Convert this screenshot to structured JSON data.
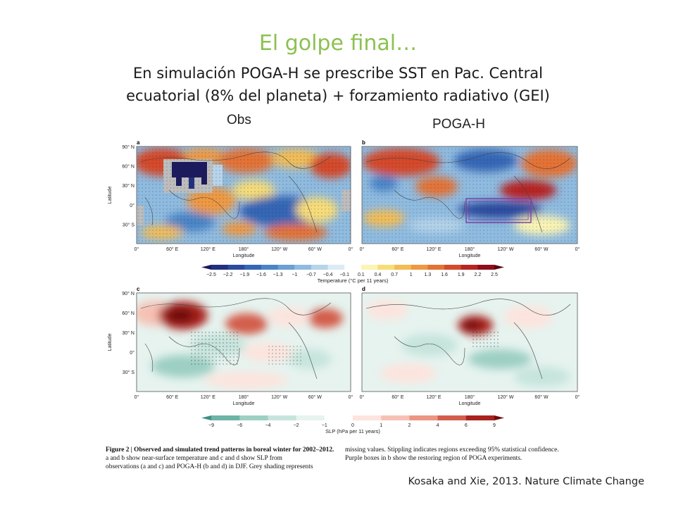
{
  "slide": {
    "title": "El golpe final…",
    "subtitle_line1": "En simulación POGA-H se prescribe SST en Pac. Central",
    "subtitle_line2": "ecuatorial (8% del planeta) + forzamiento radiativo (GEI)",
    "label_obs": "Obs",
    "label_poga": "POGA-H",
    "citation": "Kosaka and Xie, 2013. Nature Climate Change"
  },
  "figure": {
    "panels": [
      "a",
      "b",
      "c",
      "d"
    ],
    "lat_ticks": [
      "90° N",
      "60° N",
      "30° N",
      "0°",
      "30° S"
    ],
    "lon_ticks": [
      "0°",
      "60° E",
      "120° E",
      "180°",
      "120° W",
      "60° W",
      "0°"
    ],
    "xlabel": "Longitude",
    "ylabel": "Latitude",
    "temp_colorbar": {
      "ticks": [
        "−2.5",
        "−2.2",
        "−1.9",
        "−1.6",
        "−1.3",
        "−1",
        "−0.7",
        "−0.4",
        "−0.1",
        "0.1",
        "0.4",
        "0.7",
        "1",
        "1.3",
        "1.6",
        "1.9",
        "2.2",
        "2.5"
      ],
      "label": "Temperature (°C per 11 years)",
      "colors": [
        "#1c1a5e",
        "#23307f",
        "#2b4a9e",
        "#3566b6",
        "#4a84c6",
        "#6aa0d3",
        "#8fbbe0",
        "#b6d4ea",
        "#dcebf3",
        "#ffffff",
        "#fbf4b4",
        "#f7dc78",
        "#f3bc55",
        "#ee9942",
        "#e47235",
        "#d44a2a",
        "#b82422",
        "#8c0f1b",
        "#5a0510"
      ]
    },
    "slp_colorbar": {
      "ticks": [
        "−9",
        "−6",
        "−4",
        "−2",
        "−1",
        "0",
        "1",
        "2",
        "4",
        "6",
        "9"
      ],
      "label": "SLP (hPa per 11 years)",
      "colors": [
        "#3f8f86",
        "#6db3a6",
        "#9dcfc3",
        "#c6e4dd",
        "#e6f3ef",
        "#ffffff",
        "#fde4de",
        "#f6c1b4",
        "#eb9582",
        "#d35d4c",
        "#a8231f",
        "#6e0c0c"
      ]
    },
    "caption": {
      "heading": "Figure 2 | Observed and simulated trend patterns in boreal winter for 2002–2012.",
      "left_l2": "a and b show near-surface temperature and c and d show SLP from",
      "left_l3": "observations (a and c) and POGA-H (b and d) in DJF. Grey shading represents",
      "right_l1": "missing values. Stippling indicates regions exceeding 95% statistical confidence.",
      "right_l2": "Purple boxes in b show the restoring region of POGA experiments."
    }
  }
}
